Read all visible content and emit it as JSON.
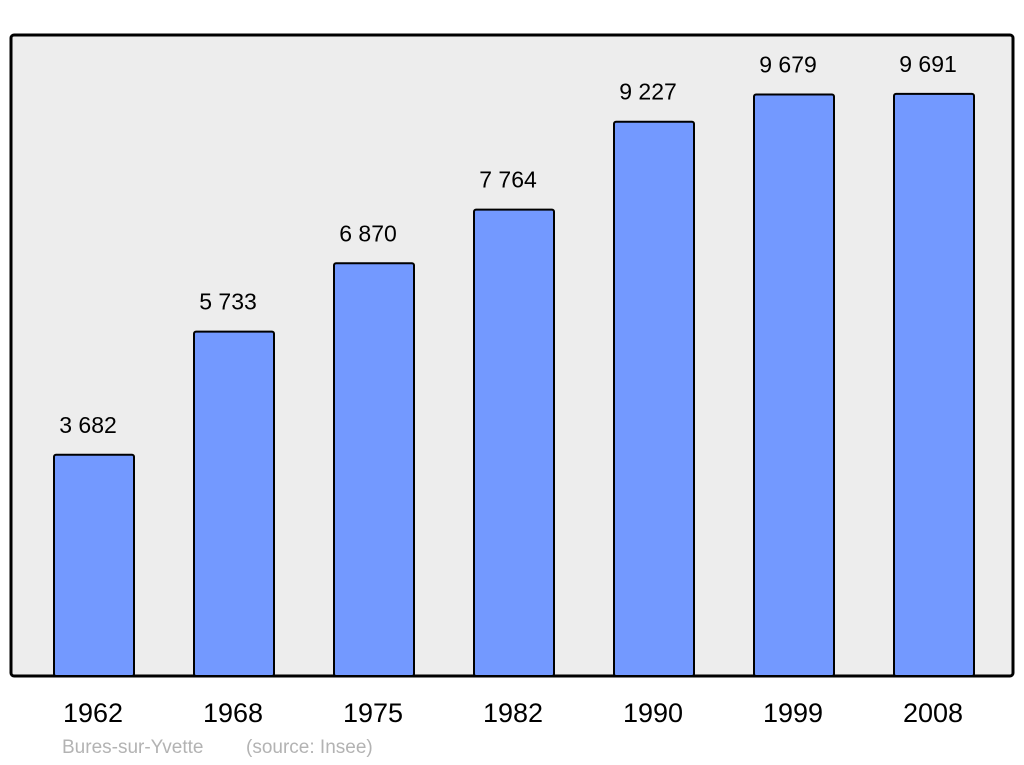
{
  "chart_data": {
    "type": "bar",
    "categories": [
      "1962",
      "1968",
      "1975",
      "1982",
      "1990",
      "1999",
      "2008"
    ],
    "values": [
      3682,
      5733,
      6870,
      7764,
      9227,
      9679,
      9691
    ],
    "value_labels": [
      "3 682",
      "5 733",
      "6 870",
      "7 764",
      "9 227",
      "9 679",
      "9 691"
    ],
    "title": "",
    "xlabel": "",
    "ylabel": "",
    "ylim": [
      0,
      10670
    ],
    "grid": false,
    "bar_color": "#7399ff",
    "background_color": "#ededed"
  },
  "footer": {
    "place": "Bures-sur-Yvette",
    "source": "(source: Insee)"
  }
}
